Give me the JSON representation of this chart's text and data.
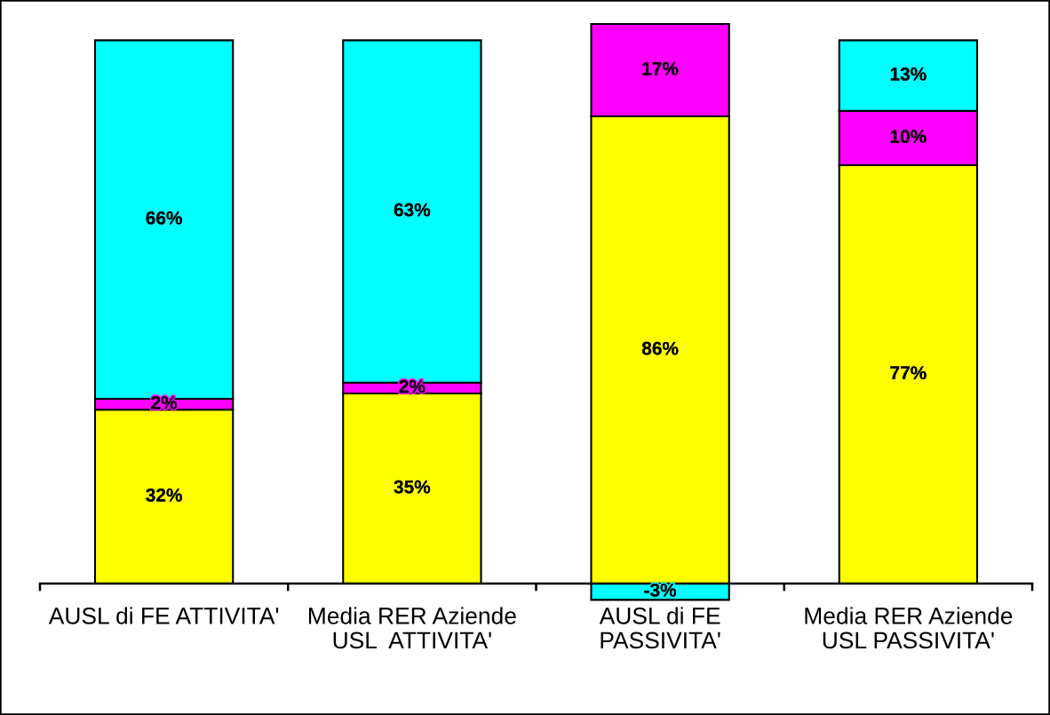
{
  "chart_data": {
    "type": "bar",
    "stacked": true,
    "categories": [
      "AUSL di FE ATTIVITA'",
      "Media RER Aziende\nUSL  ATTIVITA'",
      "AUSL di FE\nPASSIVITA'",
      "Media RER Aziende\nUSL PASSIVITA'"
    ],
    "series": [
      {
        "color": "#ffff00",
        "values": [
          32,
          35,
          86,
          77
        ],
        "value_labels": [
          "32%",
          "35%",
          "86%",
          "77%"
        ]
      },
      {
        "color": "#ff00ff",
        "values": [
          2,
          2,
          17,
          10
        ],
        "value_labels": [
          "2%",
          "2%",
          "17%",
          "10%"
        ]
      },
      {
        "color": "#00ffff",
        "values": [
          66,
          63,
          -3,
          13
        ],
        "value_labels": [
          "66%",
          "63%",
          "-3%",
          "13%"
        ]
      }
    ]
  }
}
